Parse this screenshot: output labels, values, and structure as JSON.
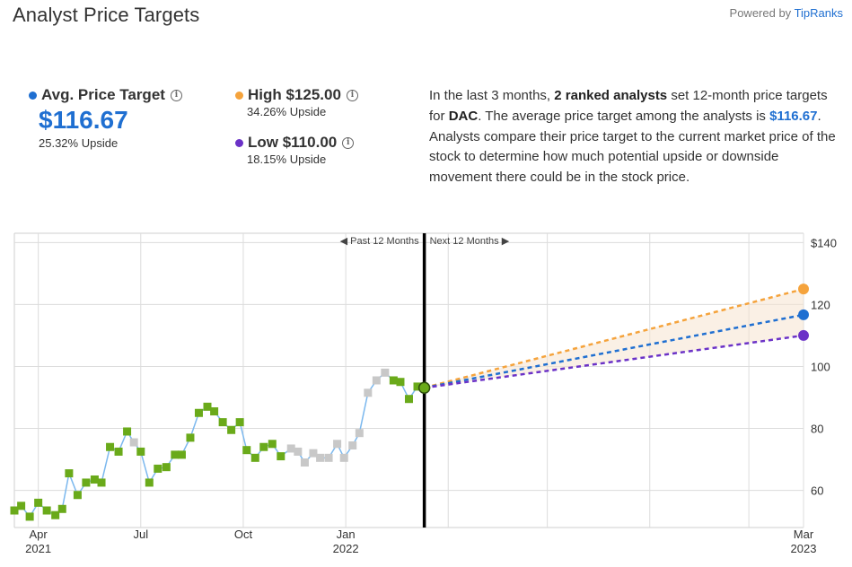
{
  "header": {
    "title": "Analyst Price Targets",
    "powered_prefix": "Powered by ",
    "powered_brand": "TipRanks"
  },
  "avg": {
    "label": "Avg. Price Target",
    "value": "$116.67",
    "upside": "25.32% Upside",
    "color": "#1f6fd1"
  },
  "high": {
    "label": "High $125.00",
    "upside": "34.26% Upside",
    "color": "#f5a33c"
  },
  "low": {
    "label": "Low $110.00",
    "upside": "18.15% Upside",
    "color": "#6b32c7"
  },
  "description": {
    "p1": "In the last 3 months, ",
    "b1": "2 ranked analysts",
    "p2": " set 12-month price targets for ",
    "b2": "DAC",
    "p3": ". The average price target among the analysts is ",
    "b3": "$116.67",
    "p4": ". Analysts compare their price target to the current market price of the stock to determine how much potential upside or downside movement there could be in the stock price."
  },
  "chart_data": {
    "type": "line",
    "past_label": "Past 12 Months",
    "next_label": "Next 12 Months",
    "y_ticks": [
      "$140",
      "120",
      "100",
      "80",
      "60"
    ],
    "y_tick_values": [
      140,
      120,
      100,
      80,
      60
    ],
    "ylim": [
      48,
      143
    ],
    "x_ticks": [
      {
        "label": "Apr",
        "year": "2021",
        "month": 2.7
      },
      {
        "label": "Jul",
        "year": "",
        "month": 5.7
      },
      {
        "label": "Oct",
        "year": "",
        "month": 8.7
      },
      {
        "label": "Jan",
        "year": "2022",
        "month": 11.7
      },
      {
        "label": "Mar",
        "year": "2023",
        "month": 25.1
      }
    ],
    "current_month": 14.0,
    "target_month": 25.1,
    "current_price": 93.1,
    "targets": {
      "high": 125.0,
      "avg": 116.67,
      "low": 110.0
    },
    "price_series": [
      {
        "m": 2.0,
        "v": 53.5,
        "c": "g"
      },
      {
        "m": 2.2,
        "v": 55.0,
        "c": "g"
      },
      {
        "m": 2.45,
        "v": 51.5,
        "c": "g"
      },
      {
        "m": 2.7,
        "v": 56.0,
        "c": "g"
      },
      {
        "m": 2.95,
        "v": 53.5,
        "c": "g"
      },
      {
        "m": 3.2,
        "v": 52.0,
        "c": "g"
      },
      {
        "m": 3.4,
        "v": 54.0,
        "c": "g"
      },
      {
        "m": 3.6,
        "v": 65.5,
        "c": "g"
      },
      {
        "m": 3.85,
        "v": 58.5,
        "c": "g"
      },
      {
        "m": 4.1,
        "v": 62.5,
        "c": "g"
      },
      {
        "m": 4.35,
        "v": 63.5,
        "c": "g"
      },
      {
        "m": 4.55,
        "v": 62.5,
        "c": "g"
      },
      {
        "m": 4.8,
        "v": 74.0,
        "c": "g"
      },
      {
        "m": 5.05,
        "v": 72.5,
        "c": "g"
      },
      {
        "m": 5.3,
        "v": 79.0,
        "c": "g"
      },
      {
        "m": 5.5,
        "v": 75.5,
        "c": "s"
      },
      {
        "m": 5.7,
        "v": 72.5,
        "c": "g"
      },
      {
        "m": 5.95,
        "v": 62.5,
        "c": "g"
      },
      {
        "m": 6.2,
        "v": 67.0,
        "c": "g"
      },
      {
        "m": 6.45,
        "v": 67.5,
        "c": "g"
      },
      {
        "m": 6.7,
        "v": 71.5,
        "c": "g"
      },
      {
        "m": 6.9,
        "v": 71.5,
        "c": "g"
      },
      {
        "m": 7.15,
        "v": 77.0,
        "c": "g"
      },
      {
        "m": 7.4,
        "v": 85.0,
        "c": "g"
      },
      {
        "m": 7.65,
        "v": 87.0,
        "c": "g"
      },
      {
        "m": 7.85,
        "v": 85.5,
        "c": "g"
      },
      {
        "m": 8.1,
        "v": 82.0,
        "c": "g"
      },
      {
        "m": 8.35,
        "v": 79.5,
        "c": "g"
      },
      {
        "m": 8.6,
        "v": 82.0,
        "c": "g"
      },
      {
        "m": 8.8,
        "v": 73.0,
        "c": "g"
      },
      {
        "m": 9.05,
        "v": 70.5,
        "c": "g"
      },
      {
        "m": 9.3,
        "v": 74.0,
        "c": "g"
      },
      {
        "m": 9.55,
        "v": 75.0,
        "c": "g"
      },
      {
        "m": 9.8,
        "v": 71.0,
        "c": "g"
      },
      {
        "m": 10.1,
        "v": 73.5,
        "c": "s"
      },
      {
        "m": 10.3,
        "v": 72.5,
        "c": "s"
      },
      {
        "m": 10.5,
        "v": 69.0,
        "c": "s"
      },
      {
        "m": 10.75,
        "v": 72.0,
        "c": "s"
      },
      {
        "m": 10.95,
        "v": 70.5,
        "c": "s"
      },
      {
        "m": 11.2,
        "v": 70.5,
        "c": "s"
      },
      {
        "m": 11.45,
        "v": 75.0,
        "c": "s"
      },
      {
        "m": 11.65,
        "v": 70.5,
        "c": "s"
      },
      {
        "m": 11.9,
        "v": 74.5,
        "c": "s"
      },
      {
        "m": 12.1,
        "v": 78.5,
        "c": "s"
      },
      {
        "m": 12.35,
        "v": 91.5,
        "c": "s"
      },
      {
        "m": 12.6,
        "v": 95.5,
        "c": "s"
      },
      {
        "m": 12.85,
        "v": 98.0,
        "c": "s"
      },
      {
        "m": 13.1,
        "v": 95.5,
        "c": "g"
      },
      {
        "m": 13.3,
        "v": 95.0,
        "c": "g"
      },
      {
        "m": 13.55,
        "v": 89.5,
        "c": "g"
      },
      {
        "m": 13.8,
        "v": 93.5,
        "c": "g"
      }
    ],
    "colors": {
      "line": "#7bb8ee",
      "green": "#6aaa1a",
      "gray": "#c8c8c8",
      "divider": "#000000",
      "grid": "#dcdcdc"
    }
  }
}
